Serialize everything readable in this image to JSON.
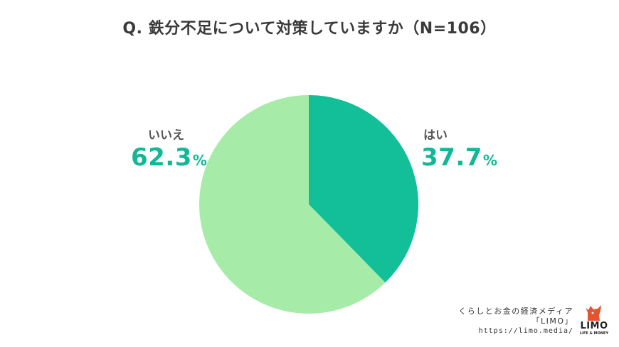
{
  "chart_data": {
    "type": "pie",
    "title": "Q. 鉄分不足について対策していますか（N=106）",
    "slices": [
      {
        "label": "はい",
        "value": 37.7,
        "color": "#12bf99"
      },
      {
        "label": "いいえ",
        "value": 62.3,
        "color": "#a6eca8"
      }
    ],
    "value_suffix": "%",
    "start_angle_deg": 0,
    "direction": "clockwise"
  },
  "credit": {
    "line1": "くらしとお金の経済メディア",
    "line2": "「LIMO」",
    "url": "https://limo.media/"
  },
  "logo": {
    "brand": "LIMO",
    "tagline": "LIFE & MONEY",
    "icon": "bull-icon",
    "color": "#e8532f"
  }
}
